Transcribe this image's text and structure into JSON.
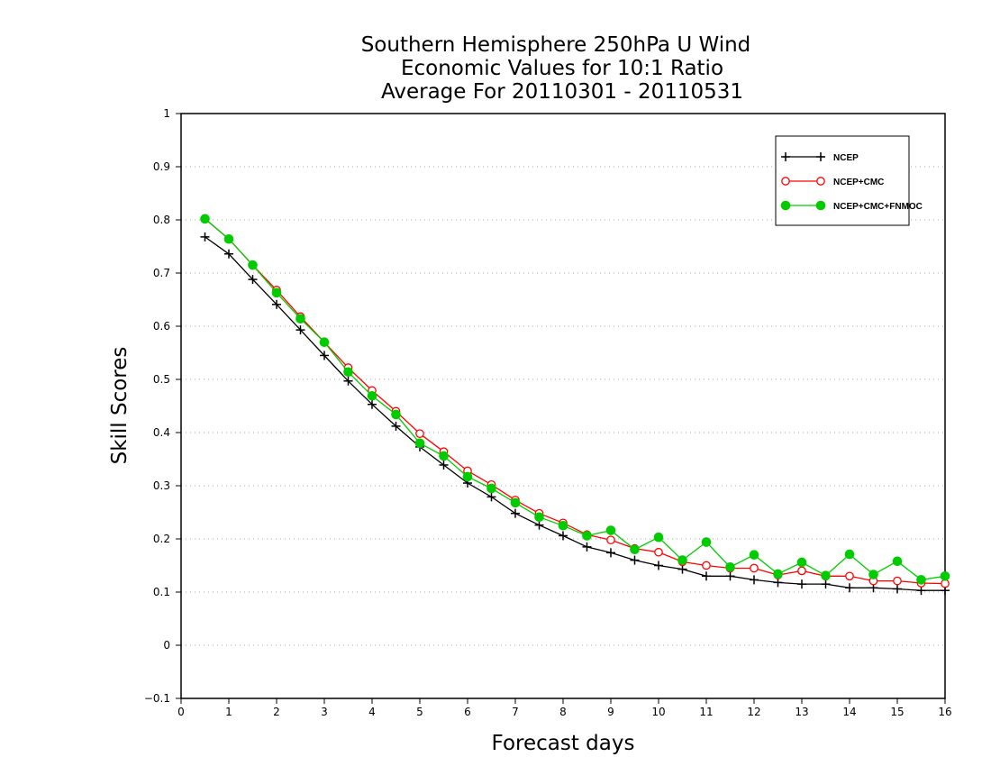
{
  "chart_data": {
    "type": "line",
    "title": [
      "Southern Hemisphere 250hPa U Wind",
      "Economic Values for 10:1 Ratio",
      "Average For 20110301 - 20110531"
    ],
    "xlabel": "Forecast days",
    "ylabel": "Skill Scores",
    "xlim": [
      0,
      16
    ],
    "ylim": [
      -0.1,
      1
    ],
    "xticks": [
      0,
      1,
      2,
      3,
      4,
      5,
      6,
      7,
      8,
      9,
      10,
      11,
      12,
      13,
      14,
      15,
      16
    ],
    "xtick_labels": [
      "0",
      "1",
      "2",
      "3",
      "4",
      "5",
      "6",
      "7",
      "8",
      "9",
      "10",
      "11",
      "12",
      "13",
      "14",
      "15",
      "16"
    ],
    "yticks": [
      -0.1,
      0,
      0.1,
      0.2,
      0.3,
      0.4,
      0.5,
      0.6,
      0.7,
      0.8,
      0.9,
      1
    ],
    "ytick_labels": [
      "−0.1",
      "0",
      "0.1",
      "0.2",
      "0.3",
      "0.4",
      "0.5",
      "0.6",
      "0.7",
      "0.8",
      "0.9",
      "1"
    ],
    "grid": true,
    "legend_position": "top-right",
    "x": [
      0.5,
      1.0,
      1.5,
      2.0,
      2.5,
      3.0,
      3.5,
      4.0,
      4.5,
      5.0,
      5.5,
      6.0,
      6.5,
      7.0,
      7.5,
      8.0,
      8.5,
      9.0,
      9.5,
      10.0,
      10.5,
      11.0,
      11.5,
      12.0,
      12.5,
      13.0,
      13.5,
      14.0,
      14.5,
      15.0,
      15.5,
      16.0
    ],
    "series": [
      {
        "name": "NCEP",
        "color": "#000000",
        "marker": "plus",
        "values": [
          0.768,
          0.736,
          0.688,
          0.641,
          0.593,
          0.545,
          0.497,
          0.453,
          0.412,
          0.373,
          0.339,
          0.305,
          0.279,
          0.248,
          0.226,
          0.206,
          0.185,
          0.174,
          0.16,
          0.15,
          0.143,
          0.13,
          0.13,
          0.123,
          0.118,
          0.115,
          0.115,
          0.108,
          0.108,
          0.106,
          0.103,
          0.103
        ]
      },
      {
        "name": "NCEP+CMC",
        "color": "#ff0000",
        "marker": "open-circle",
        "values": [
          0.802,
          0.764,
          0.715,
          0.668,
          0.618,
          0.57,
          0.522,
          0.479,
          0.44,
          0.398,
          0.364,
          0.328,
          0.302,
          0.273,
          0.248,
          0.23,
          0.208,
          0.198,
          0.182,
          0.175,
          0.157,
          0.15,
          0.145,
          0.145,
          0.132,
          0.14,
          0.13,
          0.13,
          0.121,
          0.121,
          0.117,
          0.116
        ]
      },
      {
        "name": "NCEP+CMC+FNMOC",
        "color": "#00cc00",
        "marker": "filled-circle",
        "values": [
          0.802,
          0.764,
          0.715,
          0.663,
          0.614,
          0.57,
          0.514,
          0.469,
          0.434,
          0.38,
          0.356,
          0.317,
          0.295,
          0.268,
          0.241,
          0.225,
          0.206,
          0.216,
          0.18,
          0.203,
          0.16,
          0.194,
          0.147,
          0.17,
          0.134,
          0.156,
          0.131,
          0.171,
          0.133,
          0.158,
          0.123,
          0.13
        ]
      }
    ]
  }
}
